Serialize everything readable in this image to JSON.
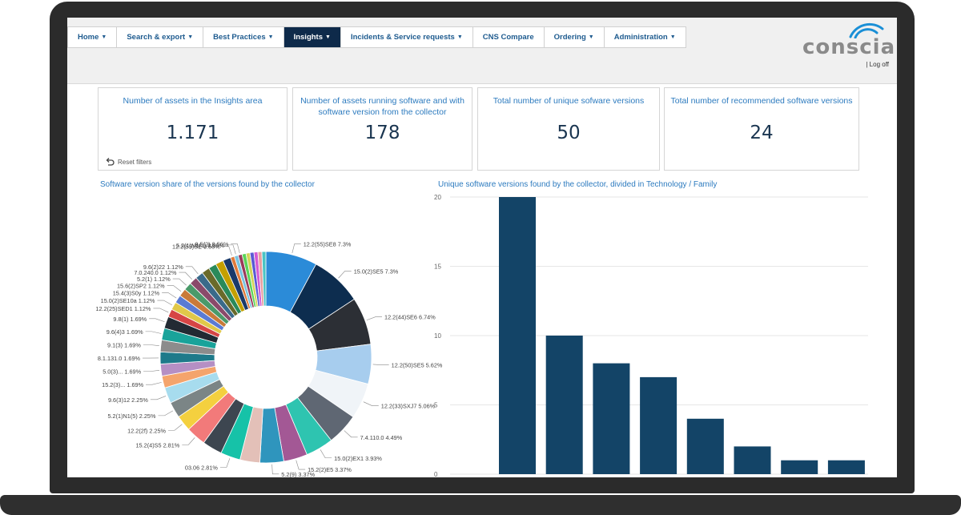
{
  "nav": {
    "items": [
      {
        "label": "Home",
        "caret": "▼",
        "active": false
      },
      {
        "label": "Search & export",
        "caret": "▼",
        "active": false
      },
      {
        "label": "Best Practices",
        "caret": "▼",
        "active": false
      },
      {
        "label": "Insights",
        "caret": "▼",
        "active": true
      },
      {
        "label": "Incidents & Service requests",
        "caret": "▼",
        "active": false
      },
      {
        "label": "CNS Compare",
        "caret": "",
        "active": false
      },
      {
        "label": "Ordering",
        "caret": "▼",
        "active": false
      },
      {
        "label": "Administration",
        "caret": "▼",
        "active": false
      }
    ]
  },
  "brand": {
    "logo_text": "conscia",
    "logoff_sep": "|",
    "logoff": "Log off"
  },
  "kpis": [
    {
      "title": "Number of assets in the Insights area",
      "value": "1.171"
    },
    {
      "title": "Number of assets running software and with software version from the collector",
      "value": "178"
    },
    {
      "title": "Total number of unique sofware versions",
      "value": "50"
    },
    {
      "title": "Total number of recommended software versions",
      "value": "24"
    }
  ],
  "reset_filters": "Reset filters",
  "colors": {
    "accent": "#2d7bbf",
    "nav_active": "#0e2a4a",
    "bar": "#134467",
    "value_text": "#1a3550"
  },
  "donut_chart": {
    "type": "pie",
    "title": "Software version share of the versions found by the collector",
    "slices": [
      {
        "label": "12.2(55)SE8",
        "pct": 7.3,
        "pct_text": "7.3%",
        "color": "#2b8bd8"
      },
      {
        "label": "15.0(2)SE5",
        "pct": 7.3,
        "pct_text": "7.3%",
        "color": "#0d2d4f"
      },
      {
        "label": "12.2(44)SE6",
        "pct": 6.74,
        "pct_text": "6.74%",
        "color": "#2c2f35"
      },
      {
        "label": "12.2(50)SE5",
        "pct": 5.62,
        "pct_text": "5.62%",
        "color": "#a7cdee"
      },
      {
        "label": "12.2(33)SXJ7",
        "pct": 5.06,
        "pct_text": "5.06%",
        "color": "#f0f4f8"
      },
      {
        "label": "7.4.110.0",
        "pct": 4.49,
        "pct_text": "4.49%",
        "color": "#5f6773"
      },
      {
        "label": "15.0(2)EX1",
        "pct": 3.93,
        "pct_text": "3.93%",
        "color": "#2ec4b0"
      },
      {
        "label": "15.2(2)E5",
        "pct": 3.37,
        "pct_text": "3.37%",
        "color": "#a35895"
      },
      {
        "label": "5.2(9)",
        "pct": 3.37,
        "pct_text": "3.37%",
        "color": "#2f95bd"
      },
      {
        "label": "",
        "pct": 2.81,
        "pct_text": "",
        "color": "#e3c0b8"
      },
      {
        "label": "03.06",
        "pct": 2.81,
        "pct_text": "2.81%",
        "color": "#16c2a8"
      },
      {
        "label": "",
        "pct": 2.81,
        "pct_text": "",
        "color": "#3d4650"
      },
      {
        "label": "15.2(4)S5",
        "pct": 2.81,
        "pct_text": "2.81%",
        "color": "#f27a7a"
      },
      {
        "label": "12.2(2f)",
        "pct": 2.25,
        "pct_text": "2.25%",
        "color": "#f4d03f"
      },
      {
        "label": "5.2(1)N1(5)",
        "pct": 2.25,
        "pct_text": "2.25%",
        "color": "#7b8586"
      },
      {
        "label": "9.6(3)12",
        "pct": 2.25,
        "pct_text": "2.25%",
        "color": "#a7dcee"
      },
      {
        "label": "15.2(3)...",
        "pct": 1.69,
        "pct_text": "1.69%",
        "color": "#f4a46c"
      },
      {
        "label": "5.0(3)...",
        "pct": 1.69,
        "pct_text": "1.69%",
        "color": "#b58fc4"
      },
      {
        "label": "8.1.131.0",
        "pct": 1.69,
        "pct_text": "1.69%",
        "color": "#1e7a8a"
      },
      {
        "label": "9.1(3)",
        "pct": 1.69,
        "pct_text": "1.69%",
        "color": "#8c8c8c"
      },
      {
        "label": "9.6(4)3",
        "pct": 1.69,
        "pct_text": "1.69%",
        "color": "#19a39a"
      },
      {
        "label": "9.8(1)",
        "pct": 1.69,
        "pct_text": "1.69%",
        "color": "#222a33"
      },
      {
        "label": "12.2(25)SED1",
        "pct": 1.12,
        "pct_text": "1.12%",
        "color": "#d64545"
      },
      {
        "label": "15.0(2)SE10a",
        "pct": 1.12,
        "pct_text": "1.12%",
        "color": "#e0c84a"
      },
      {
        "label": "15.4(3)S0y",
        "pct": 1.12,
        "pct_text": "1.12%",
        "color": "#5a7bd4"
      },
      {
        "label": "15.6(2)SP2",
        "pct": 1.12,
        "pct_text": "1.12%",
        "color": "#c97a3a"
      },
      {
        "label": "5.2(1)",
        "pct": 1.12,
        "pct_text": "1.12%",
        "color": "#4a9a6a"
      },
      {
        "label": "7.0.240.0",
        "pct": 1.12,
        "pct_text": "1.12%",
        "color": "#8a4a6a"
      },
      {
        "label": "9.6(2)22",
        "pct": 1.12,
        "pct_text": "1.12%",
        "color": "#3a6a8a"
      },
      {
        "label": "",
        "pct": 1.12,
        "pct_text": "",
        "color": "#6a6a2a"
      },
      {
        "label": "",
        "pct": 1.12,
        "pct_text": "",
        "color": "#2a8a5a"
      },
      {
        "label": "",
        "pct": 1.12,
        "pct_text": "",
        "color": "#c4a000"
      },
      {
        "label": "",
        "pct": 1.12,
        "pct_text": "",
        "color": "#1a3a6a"
      },
      {
        "label": "12.2(55)SE",
        "pct": 0.56,
        "pct_text": "0.56%",
        "color": "#e07a3a"
      },
      {
        "label": "5.2(1)N1(1)",
        "pct": 0.56,
        "pct_text": "0.56%",
        "color": "#7ac4e0"
      },
      {
        "label": "9.5(2)",
        "pct": 0.56,
        "pct_text": "0.56%",
        "color": "#9a3a5a"
      },
      {
        "label": "",
        "pct": 0.56,
        "pct_text": "",
        "color": "#5ad45a"
      },
      {
        "label": "",
        "pct": 0.56,
        "pct_text": "",
        "color": "#d4d45a"
      },
      {
        "label": "",
        "pct": 0.56,
        "pct_text": "",
        "color": "#5a5ad4"
      },
      {
        "label": "",
        "pct": 0.56,
        "pct_text": "",
        "color": "#d45ad4"
      },
      {
        "label": "",
        "pct": 0.56,
        "pct_text": "",
        "color": "#e8a0a0"
      },
      {
        "label": "",
        "pct": 0.56,
        "pct_text": "",
        "color": "#4ac4c4"
      }
    ]
  },
  "chart_data": {
    "type": "bar",
    "title": "Unique software versions found by the collector, divided in Technology / Family",
    "categories": [
      "",
      "",
      "",
      "",
      "",
      "",
      "",
      ""
    ],
    "values": [
      20,
      10,
      8,
      7,
      4,
      2,
      1,
      1
    ],
    "ylim": [
      0,
      20
    ],
    "yticks": [
      "0",
      "5",
      "10",
      "15",
      "20"
    ],
    "grid": true,
    "color": "#134467"
  }
}
